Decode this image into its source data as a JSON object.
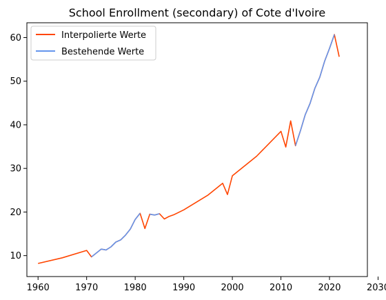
{
  "chart_data": {
    "type": "line",
    "title": "School Enrollment (secondary) of Cote d'Ivoire",
    "xlabel": "",
    "ylabel": "",
    "xlim": [
      1957.7,
      2027.8
    ],
    "ylim": [
      5.2,
      63.4
    ],
    "xticks": [
      1960,
      1970,
      1980,
      1990,
      2000,
      2010,
      2020,
      2030
    ],
    "yticks": [
      10,
      20,
      30,
      40,
      50,
      60
    ],
    "grid": false,
    "legend_position": "top-left",
    "series": [
      {
        "name": "Interpolierte Werte",
        "color": "#ff4500",
        "points": [
          [
            1960,
            8.2
          ],
          [
            1965,
            9.5
          ],
          [
            1970,
            11.2
          ],
          [
            1971,
            9.7
          ],
          [
            1972,
            10.6
          ],
          [
            1973,
            11.5
          ],
          [
            1974,
            11.3
          ],
          [
            1975,
            12.0
          ],
          [
            1976,
            13.1
          ],
          [
            1977,
            13.6
          ],
          [
            1978,
            14.7
          ],
          [
            1979,
            16.1
          ],
          [
            1980,
            18.3
          ],
          [
            1981,
            19.7
          ],
          [
            1982,
            16.2
          ],
          [
            1983,
            19.5
          ],
          [
            1984,
            19.3
          ],
          [
            1985,
            19.6
          ],
          [
            1986,
            18.4
          ],
          [
            1987,
            19.0
          ],
          [
            1988,
            19.4
          ],
          [
            1990,
            20.5
          ],
          [
            1995,
            23.9
          ],
          [
            1998,
            26.6
          ],
          [
            1999,
            24.0
          ],
          [
            2000,
            28.3
          ],
          [
            2005,
            32.8
          ],
          [
            2010,
            38.5
          ],
          [
            2011,
            34.9
          ],
          [
            2012,
            40.9
          ],
          [
            2013,
            35.2
          ],
          [
            2014,
            38.6
          ],
          [
            2015,
            42.3
          ],
          [
            2016,
            44.9
          ],
          [
            2017,
            48.4
          ],
          [
            2018,
            50.9
          ],
          [
            2019,
            54.6
          ],
          [
            2020,
            57.5
          ],
          [
            2021,
            60.7
          ],
          [
            2022,
            55.6
          ]
        ]
      },
      {
        "name": "Bestehende Werte",
        "color": "#6495ed",
        "segments": [
          [
            [
              1971,
              9.7
            ],
            [
              1972,
              10.6
            ],
            [
              1973,
              11.5
            ],
            [
              1974,
              11.3
            ],
            [
              1975,
              12.0
            ],
            [
              1976,
              13.1
            ],
            [
              1977,
              13.6
            ],
            [
              1978,
              14.7
            ],
            [
              1979,
              16.1
            ],
            [
              1980,
              18.3
            ],
            [
              1981,
              19.7
            ]
          ],
          [
            [
              1983,
              19.5
            ],
            [
              1984,
              19.3
            ],
            [
              1985,
              19.6
            ]
          ],
          [
            [
              2013,
              35.2
            ],
            [
              2014,
              38.6
            ],
            [
              2015,
              42.3
            ],
            [
              2016,
              44.9
            ],
            [
              2017,
              48.4
            ],
            [
              2018,
              50.9
            ],
            [
              2019,
              54.6
            ],
            [
              2020,
              57.5
            ],
            [
              2021,
              60.7
            ]
          ]
        ]
      }
    ]
  }
}
